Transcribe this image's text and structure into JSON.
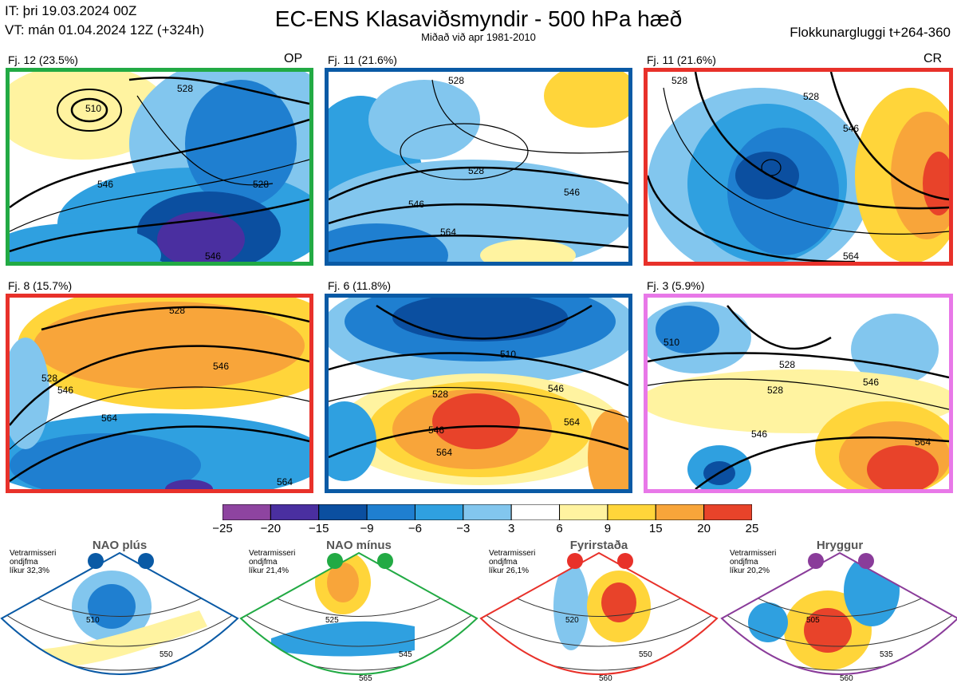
{
  "header": {
    "initial_time": "IT: þri 19.03.2024 00Z",
    "valid_time": "VT: mán 01.04.2024 12Z  (+324h)",
    "title": "EC-ENS Klasaviðsmyndir - 500 hPa hæð",
    "subtitle": "Miðað við apr 1981-2010",
    "window": "Flokkunargluggi t+264-360"
  },
  "colors": {
    "green": "#22aa44",
    "blue": "#0a5aa5",
    "red": "#e8312a",
    "magenta": "#e878e8",
    "purple": "#8a3c9a"
  },
  "panels": [
    {
      "label": "Fj. 12 (23.5%)",
      "tag": "OP",
      "border": "green",
      "contours": [
        "510",
        "528",
        "546",
        "528",
        "546"
      ]
    },
    {
      "label": "Fj. 11 (21.6%)",
      "tag": "",
      "border": "blue",
      "contours": [
        "528",
        "546",
        "546",
        "564",
        "528"
      ]
    },
    {
      "label": "Fj. 11 (21.6%)",
      "tag": "CR",
      "border": "red",
      "contours": [
        "528",
        "546",
        "528",
        "564"
      ]
    },
    {
      "label": "Fj. 8 (15.7%)",
      "tag": "",
      "border": "red",
      "contours": [
        "528",
        "528",
        "546",
        "546",
        "564",
        "564"
      ]
    },
    {
      "label": "Fj. 6 (11.8%)",
      "tag": "",
      "border": "blue",
      "contours": [
        "510",
        "528",
        "546",
        "546",
        "564",
        "564"
      ]
    },
    {
      "label": "Fj. 3 (5.9%)",
      "tag": "",
      "border": "magenta",
      "contours": [
        "510",
        "528",
        "528",
        "546",
        "564",
        "546"
      ]
    }
  ],
  "chart_data": {
    "type": "heatmap",
    "title": "EC-ENS Klasaviðsmyndir - 500 hPa hæð",
    "colorbar": {
      "ticks": [
        "−25",
        "−20",
        "−15",
        "−9",
        "−6",
        "−3",
        "3",
        "6",
        "9",
        "15",
        "20",
        "25"
      ],
      "colors": [
        "#8e44a0",
        "#4a2fa0",
        "#0b4fa0",
        "#1f7fd0",
        "#2fa0e0",
        "#82c6ee",
        "#ffffff",
        "#fff3a0",
        "#ffd53a",
        "#f8a53a",
        "#e8432a",
        "#b01818"
      ]
    }
  },
  "regimes": [
    {
      "name": "NAO plús",
      "note": [
        "Vetrarmisseri",
        "ondjfma",
        "líkur 32,3%"
      ],
      "color": "blue",
      "contours": [
        "510",
        "550"
      ]
    },
    {
      "name": "NAO mínus",
      "note": [
        "Vetrarmisseri",
        "ondjfma",
        "líkur 21,4%"
      ],
      "color": "green",
      "contours": [
        "525",
        "545",
        "565"
      ]
    },
    {
      "name": "Fyrirstaða",
      "note": [
        "Vetrarmisseri",
        "ondjfma",
        "líkur 26,1%"
      ],
      "color": "red",
      "contours": [
        "520",
        "550",
        "560"
      ]
    },
    {
      "name": "Hryggur",
      "note": [
        "Vetrarmisseri",
        "ondjfma",
        "líkur 20,2%"
      ],
      "color": "purple",
      "contours": [
        "505",
        "535",
        "560"
      ]
    }
  ]
}
